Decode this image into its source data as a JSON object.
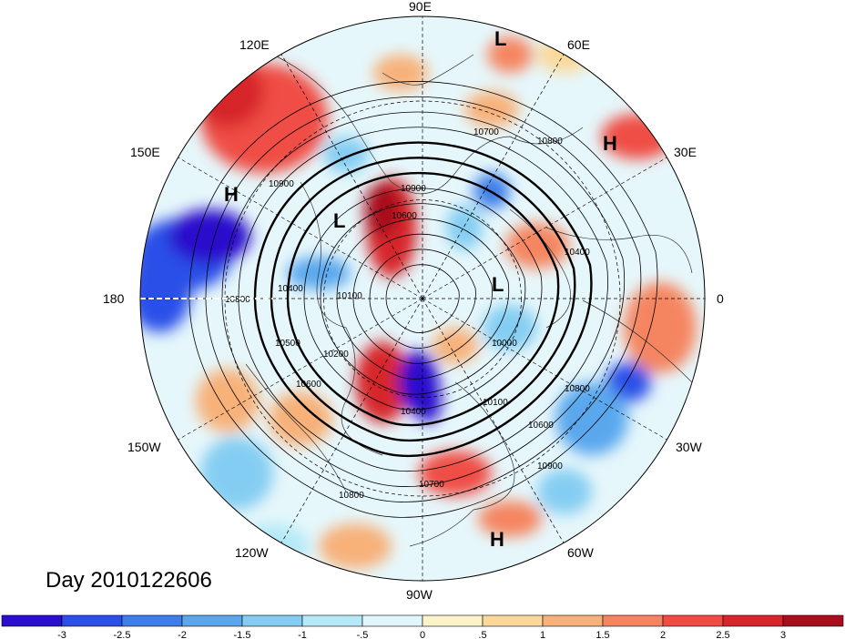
{
  "map": {
    "projection": "north-polar-stereographic",
    "title": "Day 2010122606",
    "longitude_labels": [
      "90E",
      "60E",
      "30E",
      "0",
      "30W",
      "60W",
      "90W",
      "120W",
      "150W",
      "180",
      "150E",
      "120E"
    ],
    "pressure_systems": [
      {
        "type": "L",
        "label": "L"
      },
      {
        "type": "H",
        "label": "H"
      },
      {
        "type": "H",
        "label": "H"
      },
      {
        "type": "L",
        "label": "L"
      },
      {
        "type": "L",
        "label": "L"
      },
      {
        "type": "H",
        "label": "H"
      }
    ],
    "contour_labels": [
      "10700",
      "10800",
      "10900",
      "10600",
      "10900",
      "10400",
      "10800",
      "10400",
      "10100",
      "10500",
      "10200",
      "10600",
      "10400",
      "10100",
      "10000",
      "10800",
      "10600",
      "10900",
      "10700",
      "10800"
    ],
    "contour_interval": 100,
    "colors": {
      "land_outline": "#333333",
      "contour": "#000000",
      "graticule": "#000000"
    }
  },
  "colorbar": {
    "tick_labels": [
      "-3",
      "-2.5",
      "-2",
      "-1.5",
      "-1",
      "-.5",
      "0",
      ".5",
      "1",
      "1.5",
      "2",
      "2.5",
      "3"
    ],
    "bin_colors": [
      "#2a10cc",
      "#2c4fe8",
      "#3e7ee8",
      "#5aa7ee",
      "#84cdf2",
      "#b5e9f7",
      "#e0f6fb",
      "#fcf3c8",
      "#fbd89a",
      "#f7b179",
      "#f58560",
      "#ef4d44",
      "#d7262b",
      "#a80f1c"
    ]
  }
}
